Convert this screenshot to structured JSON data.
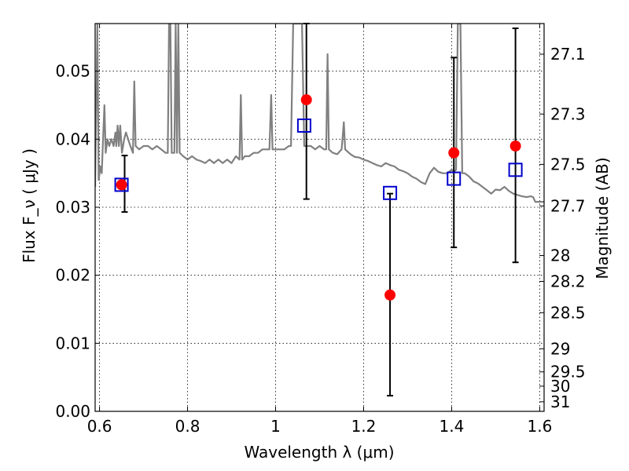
{
  "chart_data": {
    "type": "scatter",
    "xlabel": "Wavelength  λ (μm)",
    "ylabel": "Flux  F_ν  ( μJy )",
    "ylabel2": "Magnitude (AB)",
    "xlim": [
      0.59,
      1.61
    ],
    "ylim": [
      0.0,
      0.057
    ],
    "grid": true,
    "x_ticks": [
      {
        "value": 0.6,
        "label": "0.6"
      },
      {
        "value": 0.8,
        "label": "0.8"
      },
      {
        "value": 1.0,
        "label": "1"
      },
      {
        "value": 1.2,
        "label": "1.2"
      },
      {
        "value": 1.4,
        "label": "1.4"
      },
      {
        "value": 1.6,
        "label": "1.6"
      }
    ],
    "y_ticks": [
      {
        "value": 0.0,
        "label": "0.00"
      },
      {
        "value": 0.01,
        "label": "0.01"
      },
      {
        "value": 0.02,
        "label": "0.02"
      },
      {
        "value": 0.03,
        "label": "0.03"
      },
      {
        "value": 0.04,
        "label": "0.04"
      },
      {
        "value": 0.05,
        "label": "0.05"
      }
    ],
    "y2_ticks": [
      {
        "flux": 0.0525,
        "label": "27.1"
      },
      {
        "flux": 0.0437,
        "label": "27.3"
      },
      {
        "flux": 0.0363,
        "label": "27.5"
      },
      {
        "flux": 0.0302,
        "label": "27.7"
      },
      {
        "flux": 0.0229,
        "label": "28"
      },
      {
        "flux": 0.0191,
        "label": "28.2"
      },
      {
        "flux": 0.0145,
        "label": "28.5"
      },
      {
        "flux": 0.0092,
        "label": "29"
      },
      {
        "flux": 0.0058,
        "label": "29.5"
      },
      {
        "flux": 0.0037,
        "label": "30"
      },
      {
        "flux": 0.0014,
        "label": "31"
      }
    ],
    "model_spectrum": {
      "color": "#808080",
      "points": [
        [
          0.59,
          0.033
        ],
        [
          0.595,
          0.057
        ],
        [
          0.598,
          0.034
        ],
        [
          0.602,
          0.036
        ],
        [
          0.605,
          0.035
        ],
        [
          0.608,
          0.04
        ],
        [
          0.611,
          0.045
        ],
        [
          0.614,
          0.038
        ],
        [
          0.618,
          0.04
        ],
        [
          0.622,
          0.039
        ],
        [
          0.627,
          0.04
        ],
        [
          0.632,
          0.039
        ],
        [
          0.636,
          0.041
        ],
        [
          0.638,
          0.039
        ],
        [
          0.641,
          0.042
        ],
        [
          0.644,
          0.039
        ],
        [
          0.647,
          0.042
        ],
        [
          0.651,
          0.038
        ],
        [
          0.656,
          0.04
        ],
        [
          0.66,
          0.041
        ],
        [
          0.665,
          0.04
        ],
        [
          0.67,
          0.039
        ],
        [
          0.676,
          0.038
        ],
        [
          0.679,
          0.0485
        ],
        [
          0.682,
          0.039
        ],
        [
          0.69,
          0.0385
        ],
        [
          0.7,
          0.039
        ],
        [
          0.71,
          0.039
        ],
        [
          0.72,
          0.0385
        ],
        [
          0.73,
          0.039
        ],
        [
          0.74,
          0.0385
        ],
        [
          0.75,
          0.038
        ],
        [
          0.755,
          0.038
        ],
        [
          0.758,
          0.057
        ],
        [
          0.761,
          0.057
        ],
        [
          0.764,
          0.038
        ],
        [
          0.77,
          0.038
        ],
        [
          0.773,
          0.057
        ],
        [
          0.776,
          0.038
        ],
        [
          0.779,
          0.057
        ],
        [
          0.782,
          0.038
        ],
        [
          0.79,
          0.0375
        ],
        [
          0.8,
          0.037
        ],
        [
          0.81,
          0.0375
        ],
        [
          0.82,
          0.037
        ],
        [
          0.83,
          0.0368
        ],
        [
          0.84,
          0.0365
        ],
        [
          0.85,
          0.037
        ],
        [
          0.86,
          0.0365
        ],
        [
          0.87,
          0.037
        ],
        [
          0.88,
          0.0365
        ],
        [
          0.89,
          0.037
        ],
        [
          0.9,
          0.0365
        ],
        [
          0.91,
          0.0375
        ],
        [
          0.918,
          0.037
        ],
        [
          0.921,
          0.0465
        ],
        [
          0.924,
          0.037
        ],
        [
          0.93,
          0.0375
        ],
        [
          0.94,
          0.0375
        ],
        [
          0.95,
          0.038
        ],
        [
          0.96,
          0.038
        ],
        [
          0.97,
          0.0385
        ],
        [
          0.98,
          0.0385
        ],
        [
          0.986,
          0.0385
        ],
        [
          0.99,
          0.0465
        ],
        [
          0.993,
          0.0385
        ],
        [
          1.0,
          0.0385
        ],
        [
          1.01,
          0.0385
        ],
        [
          1.02,
          0.0385
        ],
        [
          1.03,
          0.039
        ],
        [
          1.035,
          0.039
        ],
        [
          1.04,
          0.057
        ],
        [
          1.06,
          0.057
        ],
        [
          1.065,
          0.039
        ],
        [
          1.07,
          0.039
        ],
        [
          1.08,
          0.039
        ],
        [
          1.09,
          0.0385
        ],
        [
          1.1,
          0.039
        ],
        [
          1.11,
          0.0385
        ],
        [
          1.115,
          0.0385
        ],
        [
          1.118,
          0.0525
        ],
        [
          1.121,
          0.0385
        ],
        [
          1.13,
          0.038
        ],
        [
          1.14,
          0.0378
        ],
        [
          1.15,
          0.0385
        ],
        [
          1.155,
          0.0425
        ],
        [
          1.158,
          0.0385
        ],
        [
          1.17,
          0.0378
        ],
        [
          1.18,
          0.0374
        ],
        [
          1.19,
          0.0373
        ],
        [
          1.2,
          0.037
        ],
        [
          1.21,
          0.0368
        ],
        [
          1.22,
          0.0365
        ],
        [
          1.23,
          0.0362
        ],
        [
          1.24,
          0.036
        ],
        [
          1.25,
          0.0365
        ],
        [
          1.26,
          0.0362
        ],
        [
          1.27,
          0.036
        ],
        [
          1.28,
          0.0355
        ],
        [
          1.29,
          0.0353
        ],
        [
          1.3,
          0.035
        ],
        [
          1.31,
          0.0345
        ],
        [
          1.32,
          0.0342
        ],
        [
          1.33,
          0.0337
        ],
        [
          1.34,
          0.0334
        ],
        [
          1.35,
          0.035
        ],
        [
          1.36,
          0.0358
        ],
        [
          1.37,
          0.0352
        ],
        [
          1.38,
          0.035
        ],
        [
          1.39,
          0.035
        ],
        [
          1.4,
          0.0355
        ],
        [
          1.405,
          0.0352
        ],
        [
          1.41,
          0.0355
        ],
        [
          1.414,
          0.057
        ],
        [
          1.42,
          0.057
        ],
        [
          1.424,
          0.035
        ],
        [
          1.43,
          0.035
        ],
        [
          1.44,
          0.0345
        ],
        [
          1.45,
          0.0338
        ],
        [
          1.46,
          0.0335
        ],
        [
          1.47,
          0.033
        ],
        [
          1.48,
          0.0325
        ],
        [
          1.49,
          0.032
        ],
        [
          1.5,
          0.0326
        ],
        [
          1.51,
          0.0325
        ],
        [
          1.52,
          0.033
        ],
        [
          1.53,
          0.0324
        ],
        [
          1.54,
          0.032
        ],
        [
          1.55,
          0.0318
        ],
        [
          1.56,
          0.0316
        ],
        [
          1.57,
          0.0315
        ],
        [
          1.58,
          0.0316
        ],
        [
          1.585,
          0.0315
        ],
        [
          1.59,
          0.0308
        ],
        [
          1.61,
          0.0308
        ]
      ]
    },
    "observed_points": {
      "color": "#ff0000",
      "points": [
        {
          "x": 0.65,
          "y": 0.0333
        },
        {
          "x": 1.07,
          "y": 0.0458
        },
        {
          "x": 1.26,
          "y": 0.0171
        },
        {
          "x": 1.405,
          "y": 0.038
        },
        {
          "x": 1.545,
          "y": 0.039
        }
      ]
    },
    "model_squares": {
      "color": "#0000cc",
      "points": [
        {
          "x": 0.65,
          "y": 0.0333
        },
        {
          "x": 1.065,
          "y": 0.042
        },
        {
          "x": 1.26,
          "y": 0.0321
        },
        {
          "x": 1.405,
          "y": 0.0342
        },
        {
          "x": 1.545,
          "y": 0.0355
        }
      ]
    },
    "error_bars": {
      "color": "#000000",
      "bars": [
        {
          "x": 0.657,
          "low": 0.0293,
          "high": 0.0376
        },
        {
          "x": 1.07,
          "low": 0.0312,
          "high": 0.057
        },
        {
          "x": 1.26,
          "low": 0.0023,
          "high": 0.032
        },
        {
          "x": 1.405,
          "low": 0.0241,
          "high": 0.052
        },
        {
          "x": 1.545,
          "low": 0.0219,
          "high": 0.0563
        }
      ]
    }
  }
}
